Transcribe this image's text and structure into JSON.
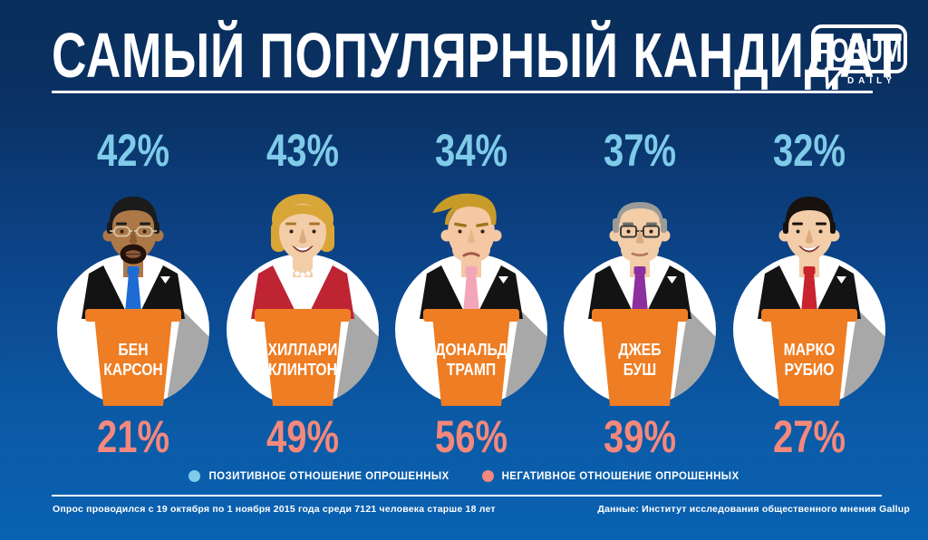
{
  "title": "САМЫЙ ПОПУЛЯРНЫЙ КАНДИДАТ",
  "logo": {
    "line1": "FORUM",
    "line2": "DAILY"
  },
  "colors": {
    "background_top": "#092e5b",
    "background_bottom": "#0a62b2",
    "positive": "#7fcbe9",
    "negative": "#f4887c",
    "podium": "#ee7d23",
    "podium_shadow": "#a8a8a8",
    "circle": "#ffffff",
    "text": "#ffffff"
  },
  "candidates": [
    {
      "id": "ben-carson",
      "name_lines": [
        "БЕН",
        "КАРСОН"
      ],
      "positive": "42%",
      "negative": "21%",
      "skin": "#ad7848",
      "nose": "#8e5c33",
      "hair_color": "#1b1b1b",
      "brow_color": "#1b1b1b",
      "hair_style": "short",
      "suit_color": "#131313",
      "tie_color": "#1d6bd3",
      "glasses": "thin",
      "facial_hair": "goatee",
      "mouth": "closed",
      "pearls": false,
      "pocket_square": true,
      "jowls": false
    },
    {
      "id": "hillary-clinton",
      "name_lines": [
        "ХИЛЛАРИ",
        "КЛИНТОН"
      ],
      "positive": "43%",
      "negative": "49%",
      "skin": "#f3cda7",
      "nose": "#dcab80",
      "hair_color": "#d7a637",
      "brow_color": "#a87828",
      "hair_style": "bob",
      "suit_color": "#bf2433",
      "tie_color": null,
      "glasses": "none",
      "facial_hair": "none",
      "mouth": "smile",
      "pearls": true,
      "pocket_square": false,
      "jowls": false
    },
    {
      "id": "donald-trump",
      "name_lines": [
        "ДОНАЛЬД",
        "ТРАМП"
      ],
      "positive": "34%",
      "negative": "56%",
      "skin": "#f5c7a2",
      "nose": "#e9b68c",
      "hair_color": "#c89b28",
      "brow_color": "#9a761c",
      "hair_style": "swoosh",
      "suit_color": "#131313",
      "tie_color": "#f2a6b8",
      "glasses": "none",
      "facial_hair": "none",
      "mouth": "frown",
      "pearls": false,
      "pocket_square": true,
      "jowls": true
    },
    {
      "id": "jeb-bush",
      "name_lines": [
        "ДЖЕБ",
        "БУШ"
      ],
      "positive": "37%",
      "negative": "39%",
      "skin": "#f3cda7",
      "nose": "#dcab80",
      "hair_color": "#9b9b97",
      "brow_color": "#6f6f6b",
      "hair_style": "receding",
      "suit_color": "#131313",
      "tie_color": "#8d2f9f",
      "glasses": "square",
      "facial_hair": "none",
      "mouth": "neutral",
      "pearls": false,
      "pocket_square": true,
      "jowls": true
    },
    {
      "id": "marco-rubio",
      "name_lines": [
        "МАРКО",
        "РУБИО"
      ],
      "positive": "32%",
      "negative": "27%",
      "skin": "#f3cda7",
      "nose": "#dcab80",
      "hair_color": "#18120e",
      "brow_color": "#18120e",
      "hair_style": "short",
      "suit_color": "#131313",
      "tie_color": "#c8232e",
      "glasses": "none",
      "facial_hair": "none",
      "mouth": "smile",
      "pearls": false,
      "pocket_square": true,
      "jowls": false
    }
  ],
  "legend": [
    {
      "id": "positive",
      "label": "ПОЗИТИВНОЕ ОТНОШЕНИЕ ОПРОШЕННЫХ",
      "color": "#7fcbe9"
    },
    {
      "id": "negative",
      "label": "НЕГАТИВНОЕ ОТНОШЕНИЕ ОПРОШЕННЫХ",
      "color": "#f4887c"
    }
  ],
  "footer": {
    "left": "Опрос проводился с 19 октября по 1 ноября 2015 года среди 7121 человека старше 18 лет",
    "right": "Данные: Институт исследования общественного мнения Gallup"
  },
  "chart_data": {
    "type": "bar",
    "title": "Самый популярный кандидат",
    "categories": [
      "Бен Карсон",
      "Хиллари Клинтон",
      "Дональд Трамп",
      "Джеб Буш",
      "Марко Рубио"
    ],
    "series": [
      {
        "name": "Позитивное отношение опрошенных",
        "values": [
          42,
          43,
          34,
          37,
          32
        ]
      },
      {
        "name": "Негативное отношение опрошенных",
        "values": [
          21,
          49,
          56,
          39,
          27
        ]
      }
    ],
    "unit": "%",
    "value_range": [
      0,
      100
    ],
    "legend_position": "bottom",
    "grid": false
  }
}
